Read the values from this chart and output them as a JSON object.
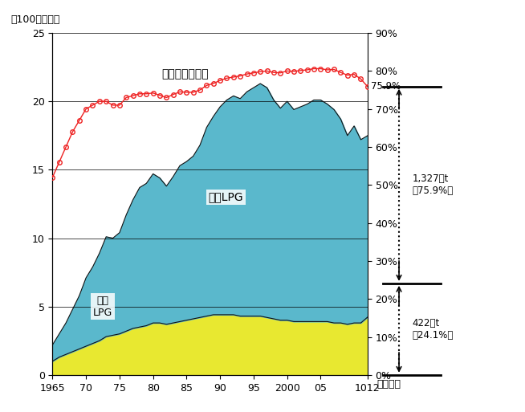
{
  "years": [
    1965,
    1966,
    1967,
    1968,
    1969,
    1970,
    1971,
    1972,
    1973,
    1974,
    1975,
    1976,
    1977,
    1978,
    1979,
    1980,
    1981,
    1982,
    1983,
    1984,
    1985,
    1986,
    1987,
    1988,
    1989,
    1990,
    1991,
    1992,
    1993,
    1994,
    1995,
    1996,
    1997,
    1998,
    1999,
    2000,
    2001,
    2002,
    2003,
    2004,
    2005,
    2006,
    2007,
    2008,
    2009,
    2010,
    2011,
    2012
  ],
  "domestic": [
    1.0,
    1.3,
    1.5,
    1.7,
    1.9,
    2.1,
    2.3,
    2.5,
    2.8,
    2.9,
    3.0,
    3.2,
    3.4,
    3.5,
    3.6,
    3.8,
    3.8,
    3.7,
    3.8,
    3.9,
    4.0,
    4.1,
    4.2,
    4.3,
    4.4,
    4.4,
    4.4,
    4.4,
    4.3,
    4.3,
    4.3,
    4.3,
    4.2,
    4.1,
    4.0,
    4.0,
    3.9,
    3.9,
    3.9,
    3.9,
    3.9,
    3.9,
    3.8,
    3.8,
    3.7,
    3.8,
    3.8,
    4.22
  ],
  "imported": [
    1.2,
    1.7,
    2.3,
    3.1,
    3.9,
    5.0,
    5.6,
    6.4,
    7.3,
    7.1,
    7.4,
    8.5,
    9.4,
    10.2,
    10.4,
    10.9,
    10.6,
    10.1,
    10.7,
    11.4,
    11.6,
    11.9,
    12.6,
    13.8,
    14.5,
    15.2,
    15.7,
    16.0,
    15.9,
    16.4,
    16.7,
    17.0,
    16.8,
    16.0,
    15.5,
    16.0,
    15.5,
    15.7,
    15.9,
    16.2,
    16.2,
    15.9,
    15.6,
    14.9,
    13.8,
    14.4,
    13.4,
    13.27
  ],
  "import_ratio": [
    52.0,
    56.0,
    60.0,
    64.0,
    67.0,
    70.0,
    71.0,
    72.0,
    72.0,
    71.0,
    71.0,
    73.0,
    73.5,
    74.0,
    74.0,
    74.2,
    73.6,
    73.0,
    73.8,
    74.5,
    74.4,
    74.4,
    75.0,
    76.2,
    76.7,
    77.5,
    78.1,
    78.4,
    78.7,
    79.2,
    79.5,
    79.8,
    80.0,
    79.6,
    79.5,
    80.0,
    79.9,
    80.1,
    80.3,
    80.6,
    80.6,
    80.3,
    80.4,
    79.6,
    78.9,
    79.1,
    77.9,
    75.9
  ],
  "ylim_left": [
    0,
    25
  ],
  "ylim_right": [
    0,
    90
  ],
  "yticks_left": [
    0,
    5,
    10,
    15,
    20,
    25
  ],
  "yticks_right": [
    0,
    10,
    20,
    30,
    40,
    50,
    60,
    70,
    80,
    90
  ],
  "xtick_labels": [
    "1965",
    "70",
    "75",
    "80",
    "85",
    "90",
    "95",
    "2000",
    "05",
    "1012"
  ],
  "xtick_positions": [
    1965,
    1970,
    1975,
    1980,
    1985,
    1990,
    1995,
    2000,
    2005,
    2012
  ],
  "domestic_color": "#e8e830",
  "imported_color": "#5ab8cc",
  "line_color": "#ee2222",
  "border_color": "#111111",
  "ylabel_left": "（100万トン）",
  "annotation_import_label": "輸入比率（％）",
  "annotation_import_lpg": "輸入LPG",
  "annotation_domestic_lpg": "国産\nLPG",
  "annotation_1327": "1,327万t\n（75.9%）",
  "annotation_422": "422万t\n（24.1%）",
  "last_ratio_label": "75.9%",
  "nendo_label": "（年度）",
  "bracket_top_pct": 75.9,
  "bracket_mid_pct": 24.1,
  "bracket_bottom_pct": 0,
  "fig_width": 6.54,
  "fig_height": 5.13
}
